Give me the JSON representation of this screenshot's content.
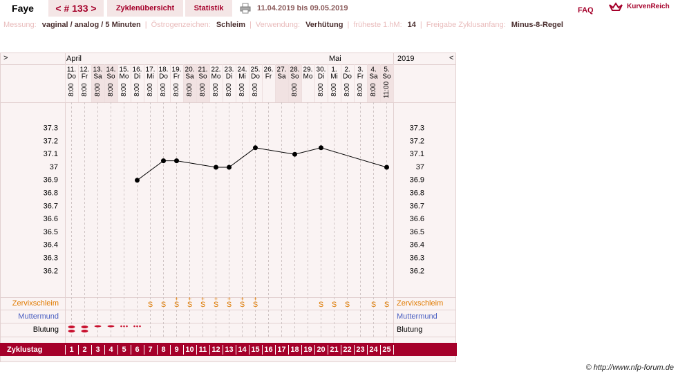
{
  "header": {
    "name": "Faye",
    "cycle_nav": "< # 133 >",
    "tabs": [
      "Zyklenübersicht",
      "Statistik"
    ],
    "range": "11.04.2019 bis 09.05.2019",
    "faq": "FAQ",
    "logo": "KurvenReich"
  },
  "info_separator": "|",
  "info": [
    {
      "label": "Messung:",
      "value": "vaginal / analog / 5 Minuten"
    },
    {
      "label": "Östrogenzeichen:",
      "value": "Schleim"
    },
    {
      "label": "Verwendung:",
      "value": "Verhütung"
    },
    {
      "label": "früheste 1.hM:",
      "value": "14"
    },
    {
      "label": "Freigabe Zyklusanfang:",
      "value": "Minus-8-Regel"
    }
  ],
  "chart_data": {
    "type": "line",
    "nav_left": ">",
    "nav_right": "<",
    "months": [
      "April",
      "Mai"
    ],
    "year": "2019",
    "dates": [
      "11.",
      "12.",
      "13.",
      "14.",
      "15.",
      "16.",
      "17.",
      "18.",
      "19.",
      "20.",
      "21.",
      "22.",
      "23.",
      "24.",
      "25.",
      "26.",
      "27.",
      "28.",
      "29.",
      "30.",
      "1.",
      "2.",
      "3.",
      "4.",
      "5."
    ],
    "weekdays": [
      "Do",
      "Fr",
      "Sa",
      "So",
      "Mo",
      "Di",
      "Mi",
      "Do",
      "Fr",
      "Sa",
      "So",
      "Mo",
      "Di",
      "Mi",
      "Do",
      "Fr",
      "Sa",
      "So",
      "Mo",
      "Di",
      "Mi",
      "Do",
      "Fr",
      "Sa",
      "So"
    ],
    "times": [
      "8:00",
      "8:00",
      "8:00",
      "8:00",
      "8:00",
      "8:00",
      "8:00",
      "8:00",
      "8:00",
      "8:00",
      "8:00",
      "8:00",
      "8:00",
      "8:00",
      "8:00",
      null,
      null,
      "8:00",
      null,
      "8:00",
      "8:00",
      "8:00",
      "8:00",
      "8:00",
      "11:00"
    ],
    "weekend_days": [
      3,
      4,
      10,
      11,
      17,
      18,
      24,
      25
    ],
    "weekend_color": "#f1e2e2",
    "x": [
      6,
      8,
      9,
      12,
      13,
      15,
      18,
      20,
      25
    ],
    "values": [
      36.9,
      37.05,
      37.05,
      37.0,
      37.0,
      37.15,
      37.1,
      37.15,
      37.0
    ],
    "color": "#000000",
    "xlim": [
      0.5,
      25.5
    ],
    "ylim": [
      36.0,
      37.5
    ],
    "yticks": [
      36.2,
      36.3,
      36.4,
      36.5,
      36.6,
      36.7,
      36.8,
      36.9,
      37,
      37.1,
      37.2,
      37.3
    ],
    "row_labels": {
      "cervix": "Zervixschleim",
      "mouth": "Muttermund",
      "bleeding": "Blutung",
      "cycle": "Zyklustag"
    },
    "cervix": [
      null,
      null,
      null,
      null,
      null,
      null,
      "S",
      "S",
      "S",
      "S",
      "S",
      "S",
      "S",
      "S",
      "S",
      null,
      null,
      null,
      null,
      "S",
      "S",
      "S",
      null,
      "S",
      "S"
    ],
    "cervix_plus": [
      null,
      null,
      null,
      null,
      null,
      null,
      null,
      null,
      "+",
      "+",
      "+",
      "+",
      "+",
      "+",
      "+",
      null,
      null,
      null,
      null,
      null,
      null,
      null,
      null,
      null,
      null
    ],
    "cervix_color": "#e07b00",
    "cycle_days": [
      1,
      2,
      3,
      4,
      5,
      6,
      7,
      8,
      9,
      10,
      11,
      12,
      13,
      14,
      15,
      16,
      17,
      18,
      19,
      20,
      21,
      22,
      23,
      24,
      25
    ]
  },
  "footer": "© http://www.nfp-forum.de"
}
